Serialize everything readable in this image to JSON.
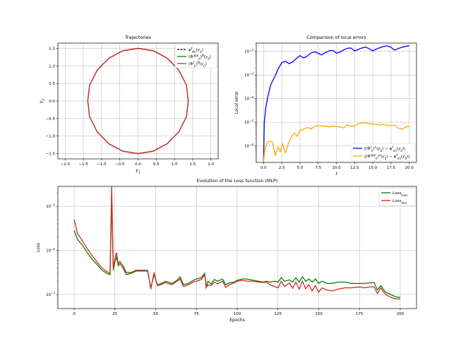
{
  "chart_data": [
    {
      "type": "line",
      "title": "Trajectories",
      "xlabel": "y_1",
      "ylabel": "y_2",
      "xlim": [
        -2.2,
        2.2
      ],
      "ylim": [
        -1.65,
        1.65
      ],
      "grid": true,
      "legend_position": "top-right",
      "xticks": [
        -2.0,
        -1.5,
        -1.0,
        -0.5,
        0.0,
        0.5,
        1.0,
        1.5,
        2.0
      ],
      "xtick_labels": [
        "−2.0",
        "−1.5",
        "−1.0",
        "−0.5",
        "0.0",
        "0.5",
        "1.0",
        "1.5",
        "2.0"
      ],
      "yticks": [
        -1.5,
        -1.0,
        -0.5,
        0.0,
        0.5,
        1.0,
        1.5
      ],
      "ytick_labels": [
        "−1.5",
        "−1.0",
        "−0.5",
        "0.0",
        "0.5",
        "1.0",
        "1.5"
      ],
      "curve": {
        "shape": "closed orbit",
        "x_extent": [
          -1.38,
          1.38
        ],
        "y_extent": [
          -1.5,
          1.5
        ],
        "x": [
          1.38,
          1.33,
          1.12,
          0.8,
          0.42,
          0.0,
          -0.42,
          -0.8,
          -1.12,
          -1.33,
          -1.38,
          -1.33,
          -1.12,
          -0.8,
          -0.42,
          0.0,
          0.42,
          0.8,
          1.12,
          1.33,
          1.38
        ],
        "y": [
          0.0,
          0.45,
          0.88,
          1.22,
          1.43,
          1.5,
          1.43,
          1.22,
          0.88,
          0.45,
          0.0,
          -0.45,
          -0.88,
          -1.22,
          -1.43,
          -1.5,
          -1.43,
          -1.22,
          -0.88,
          -0.45,
          0.0
        ]
      },
      "series": [
        {
          "name": "φ^f_{Nh}(y_0)",
          "color": "#000000",
          "style": "dashed"
        },
        {
          "name": "(Φ^{app}_h)^N(y_0)",
          "color": "#008000",
          "style": "solid"
        },
        {
          "name": "(Φ^f_h)^N(y_0)",
          "color": "#d62728",
          "style": "solid"
        }
      ]
    },
    {
      "type": "line",
      "title": "Comparison of local errors",
      "xlabel": "t",
      "ylabel": "Local error",
      "xlim": [
        -1.0,
        21.0
      ],
      "yscale": "log",
      "ylim_log10": [
        -6.7,
        -1.65
      ],
      "grid": true,
      "legend_position": "bottom-right",
      "xticks": [
        0.0,
        2.5,
        5.0,
        7.5,
        10.0,
        12.5,
        15.0,
        17.5,
        20.0
      ],
      "xtick_labels": [
        "0.0",
        "2.5",
        "5.0",
        "7.5",
        "10.0",
        "12.5",
        "15.0",
        "17.5",
        "20.0"
      ],
      "yticks_log10": [
        -6,
        -5,
        -4,
        -3,
        -2
      ],
      "series": [
        {
          "name": "|(Φ^f_h)^n(y_0) − φ^f_{nh}(y_0)|",
          "color": "#0000ff",
          "x": [
            0,
            0.1,
            0.3,
            0.6,
            1,
            1.5,
            2,
            2.5,
            3,
            3.5,
            4,
            4.5,
            5,
            5.5,
            6,
            6.5,
            7,
            7.5,
            8,
            8.5,
            9,
            9.5,
            10,
            10.5,
            11,
            11.5,
            12,
            12.5,
            13,
            13.5,
            14,
            14.5,
            15,
            15.5,
            16,
            16.5,
            17,
            17.5,
            18,
            18.5,
            19,
            19.5,
            20
          ],
          "y_log10": [
            -6.7,
            -5.0,
            -4.4,
            -3.9,
            -3.4,
            -3.1,
            -2.75,
            -2.48,
            -2.42,
            -2.52,
            -2.45,
            -2.3,
            -2.18,
            -2.28,
            -2.2,
            -2.07,
            -2.02,
            -2.08,
            -2.15,
            -2.05,
            -1.98,
            -1.96,
            -2.08,
            -2.03,
            -1.94,
            -1.87,
            -1.86,
            -1.98,
            -1.92,
            -1.86,
            -1.82,
            -1.89,
            -1.98,
            -1.9,
            -1.84,
            -1.79,
            -1.77,
            -1.83,
            -1.95,
            -1.88,
            -1.83,
            -1.79,
            -1.76
          ]
        },
        {
          "name": "|(Φ^{app}_h)^n(y_0) − φ^f_{nh}(y_0)|",
          "color": "#ffa500",
          "x": [
            0,
            0.1,
            0.25,
            0.5,
            0.8,
            1.2,
            1.6,
            2,
            2.3,
            2.6,
            3,
            3.4,
            3.8,
            4.2,
            4.6,
            5,
            5.5,
            6,
            6.5,
            7,
            7.5,
            8,
            8.5,
            9,
            9.5,
            10,
            10.5,
            11,
            11.5,
            12,
            12.5,
            13,
            13.5,
            14,
            14.5,
            15,
            15.5,
            16,
            16.5,
            17,
            17.5,
            18,
            18.5,
            19,
            19.5,
            20
          ],
          "y_log10": [
            -6.7,
            -6.35,
            -6.1,
            -5.85,
            -5.8,
            -5.84,
            -6.4,
            -6.05,
            -6.25,
            -5.92,
            -6.3,
            -5.9,
            -5.63,
            -5.45,
            -5.6,
            -5.35,
            -5.3,
            -5.22,
            -5.28,
            -5.18,
            -5.15,
            -5.16,
            -5.17,
            -5.2,
            -5.16,
            -5.18,
            -5.2,
            -5.24,
            -5.1,
            -5.18,
            -5.16,
            -5.07,
            -5.03,
            -5.02,
            -5.06,
            -5.08,
            -5.08,
            -5.13,
            -5.08,
            -5.15,
            -5.13,
            -5.12,
            -5.25,
            -5.3,
            -5.2,
            -5.17
          ]
        }
      ]
    },
    {
      "type": "line",
      "title": "Evolution of the Loss function (MLP)",
      "xlabel": "Epochs",
      "ylabel": "Loss",
      "xlim": [
        -10,
        210
      ],
      "yscale": "log",
      "ylim_log10": [
        -7.32,
        -4.55
      ],
      "grid": true,
      "legend_position": "top-right",
      "xticks": [
        0,
        25,
        50,
        75,
        100,
        125,
        150,
        175,
        200
      ],
      "xtick_labels": [
        "0",
        "25",
        "50",
        "75",
        "100",
        "125",
        "150",
        "175",
        "200"
      ],
      "yticks_log10": [
        -7,
        -6,
        -5
      ],
      "series": [
        {
          "name": "Loss_train",
          "color": "#008000",
          "x": [
            0,
            2,
            5,
            8,
            11,
            14,
            17,
            20,
            22,
            23,
            24,
            25,
            26,
            27,
            28,
            30,
            32,
            35,
            38,
            42,
            45,
            47,
            49,
            51,
            53,
            56,
            60,
            63,
            65,
            67,
            70,
            73,
            75,
            78,
            80,
            81,
            82,
            84,
            86,
            88,
            91,
            93,
            95,
            98,
            100,
            103,
            106,
            110,
            113,
            116,
            118,
            120,
            123,
            125,
            127,
            129,
            132,
            134,
            136,
            138,
            140,
            142,
            144,
            146,
            148,
            150,
            152,
            155,
            158,
            162,
            166,
            170,
            175,
            178,
            181,
            184,
            186,
            188,
            191,
            194,
            197,
            200
          ],
          "y_log10": [
            -5.55,
            -5.75,
            -5.88,
            -6.05,
            -6.2,
            -6.32,
            -6.45,
            -6.52,
            -6.55,
            -4.83,
            -6.45,
            -6.25,
            -6.15,
            -6.35,
            -6.3,
            -6.4,
            -6.55,
            -6.52,
            -6.47,
            -6.47,
            -6.47,
            -6.85,
            -6.55,
            -6.78,
            -6.76,
            -6.7,
            -6.75,
            -6.68,
            -6.6,
            -6.78,
            -6.75,
            -6.68,
            -6.65,
            -6.62,
            -6.52,
            -6.82,
            -6.7,
            -6.76,
            -6.66,
            -6.7,
            -6.65,
            -6.78,
            -6.74,
            -6.72,
            -6.68,
            -6.65,
            -6.65,
            -6.68,
            -6.7,
            -6.72,
            -6.7,
            -6.72,
            -6.7,
            -6.72,
            -6.62,
            -6.7,
            -6.67,
            -6.72,
            -6.62,
            -6.72,
            -6.6,
            -6.7,
            -6.65,
            -6.72,
            -6.65,
            -6.75,
            -6.7,
            -6.75,
            -6.75,
            -6.72,
            -6.72,
            -6.75,
            -6.75,
            -6.75,
            -6.74,
            -6.73,
            -6.9,
            -6.8,
            -6.95,
            -7.0,
            -7.05,
            -7.07
          ]
        },
        {
          "name": "Loss_test",
          "color": "#d62728",
          "x": [
            0,
            2,
            5,
            8,
            11,
            14,
            17,
            20,
            22,
            23,
            24,
            25,
            26,
            27,
            28,
            30,
            32,
            35,
            38,
            42,
            45,
            47,
            49,
            51,
            53,
            56,
            60,
            63,
            65,
            67,
            70,
            73,
            75,
            78,
            80,
            81,
            82,
            84,
            86,
            88,
            91,
            93,
            95,
            98,
            100,
            103,
            106,
            110,
            113,
            116,
            118,
            120,
            123,
            125,
            127,
            129,
            132,
            134,
            136,
            138,
            140,
            142,
            144,
            146,
            148,
            150,
            152,
            155,
            158,
            162,
            166,
            170,
            175,
            178,
            181,
            184,
            186,
            188,
            191,
            194,
            197,
            200
          ],
          "y_log10": [
            -5.3,
            -5.62,
            -5.78,
            -5.96,
            -6.12,
            -6.26,
            -6.4,
            -6.48,
            -6.52,
            -4.55,
            -6.4,
            -6.18,
            -6.05,
            -6.3,
            -6.25,
            -6.35,
            -6.5,
            -6.5,
            -6.45,
            -6.45,
            -6.45,
            -6.88,
            -6.5,
            -6.8,
            -6.78,
            -6.73,
            -6.78,
            -6.7,
            -6.65,
            -6.82,
            -6.78,
            -6.72,
            -6.7,
            -6.66,
            -6.55,
            -6.85,
            -6.78,
            -6.8,
            -6.72,
            -6.76,
            -6.7,
            -6.84,
            -6.78,
            -6.74,
            -6.7,
            -6.68,
            -6.7,
            -6.7,
            -6.72,
            -6.73,
            -6.72,
            -6.78,
            -6.82,
            -6.85,
            -6.7,
            -6.82,
            -6.74,
            -6.86,
            -6.72,
            -6.88,
            -6.7,
            -6.87,
            -6.78,
            -6.92,
            -6.8,
            -6.95,
            -6.85,
            -6.9,
            -6.92,
            -6.88,
            -6.85,
            -6.85,
            -6.83,
            -6.85,
            -6.83,
            -6.83,
            -6.98,
            -6.85,
            -7.0,
            -7.06,
            -7.1,
            -7.1
          ]
        }
      ]
    }
  ]
}
